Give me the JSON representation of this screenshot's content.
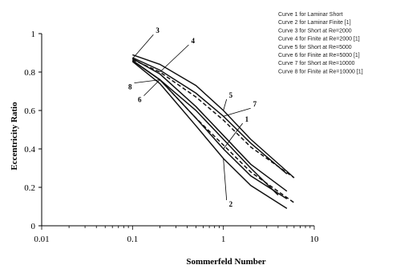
{
  "chart_data": {
    "type": "line",
    "title": "",
    "xlabel": "Sommerfeld Number",
    "ylabel": "Eccentricity Ratio",
    "xscale": "log",
    "xlim": [
      0.01,
      10
    ],
    "ylim": [
      0,
      1
    ],
    "xticks": [
      0.01,
      0.1,
      1,
      10
    ],
    "xtick_labels": [
      "0.01",
      "0.1",
      "1",
      "10"
    ],
    "yticks": [
      0,
      0.2,
      0.4,
      0.6,
      0.8,
      1
    ],
    "ytick_labels": [
      "0",
      "0.2",
      "0.4",
      "0.6",
      "0.8",
      "1"
    ],
    "grid": false,
    "legend_position": "top-right",
    "legend": [
      "Curve 1 for Laminar Short",
      "Curve 2 for Laminar Finite [1]",
      "Curve 3 for Short at Re=2000",
      "Curve 4 for Finite at Re=2000 [1]",
      "Curve 5 for Short at Re=5000",
      "Curve 6 for Finite at Re=5000 [1]",
      "Curve 7 for Short at Re=10000",
      "Curve 8 for Finite at Re=10000 [1]"
    ],
    "series": [
      {
        "label": "1",
        "style": "solid",
        "x": [
          0.1,
          0.2,
          0.5,
          1,
          2,
          5
        ],
        "y": [
          0.86,
          0.76,
          0.56,
          0.4,
          0.26,
          0.14
        ]
      },
      {
        "label": "2",
        "style": "solid",
        "x": [
          0.1,
          0.2,
          0.5,
          1,
          2,
          5
        ],
        "y": [
          0.855,
          0.74,
          0.52,
          0.35,
          0.21,
          0.09
        ]
      },
      {
        "label": "3",
        "style": "solid",
        "x": [
          0.1,
          0.2,
          0.5,
          1,
          2,
          5
        ],
        "y": [
          0.87,
          0.79,
          0.62,
          0.47,
          0.32,
          0.18
        ]
      },
      {
        "label": "4",
        "style": "dashed",
        "x": [
          0.1,
          0.2,
          0.5,
          1,
          2,
          6
        ],
        "y": [
          0.865,
          0.8,
          0.67,
          0.55,
          0.41,
          0.25
        ]
      },
      {
        "label": "5",
        "style": "solid",
        "x": [
          0.1,
          0.2,
          0.5,
          1,
          2,
          6
        ],
        "y": [
          0.89,
          0.84,
          0.73,
          0.6,
          0.45,
          0.25
        ]
      },
      {
        "label": "6",
        "style": "solid",
        "x": [
          0.1,
          0.2,
          0.5,
          1,
          2,
          4
        ],
        "y": [
          0.86,
          0.76,
          0.6,
          0.45,
          0.3,
          0.16
        ]
      },
      {
        "label": "7",
        "style": "solid",
        "x": [
          0.1,
          0.2,
          0.5,
          1,
          2,
          5
        ],
        "y": [
          0.875,
          0.81,
          0.69,
          0.57,
          0.43,
          0.27
        ]
      },
      {
        "label": "8",
        "style": "dashed",
        "x": [
          0.1,
          0.2,
          0.5,
          1,
          2,
          6
        ],
        "y": [
          0.86,
          0.76,
          0.56,
          0.42,
          0.28,
          0.12
        ]
      }
    ]
  }
}
